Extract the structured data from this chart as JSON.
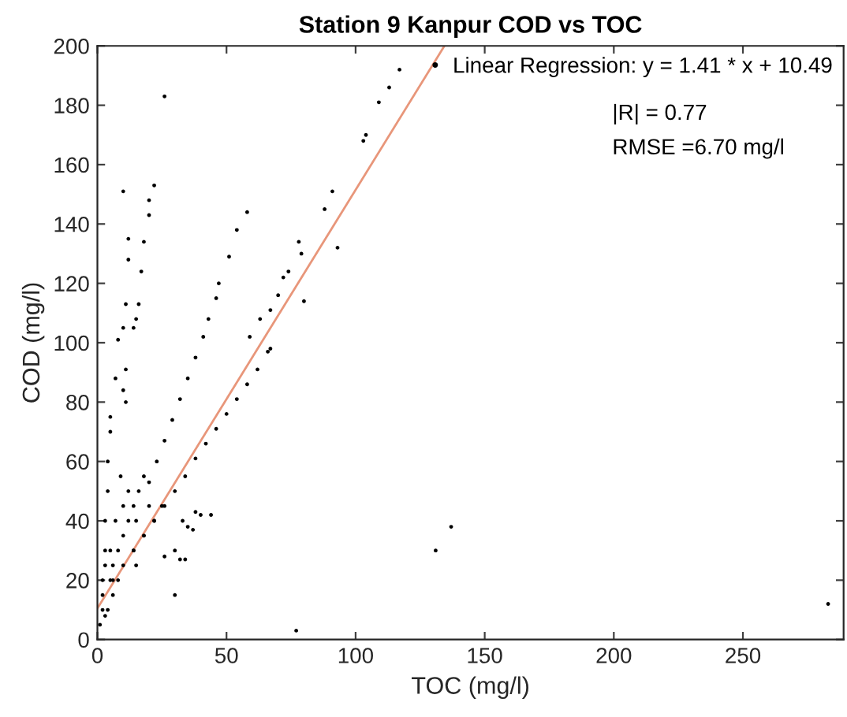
{
  "chart_data": {
    "type": "scatter",
    "title": "Station 9 Kanpur COD vs TOC",
    "xlabel": "TOC (mg/l)",
    "ylabel": "COD (mg/l)",
    "xlim": [
      0,
      289
    ],
    "ylim": [
      0,
      200
    ],
    "xticks": [
      0,
      50,
      100,
      150,
      200,
      250
    ],
    "yticks": [
      0,
      20,
      40,
      60,
      80,
      100,
      120,
      140,
      160,
      180,
      200
    ],
    "grid": false,
    "legend": "top right",
    "series": [
      {
        "name": "Linear Regression: y = 1.41 * x + 10.49",
        "color": "#000000",
        "marker": "circle",
        "x": [
          10,
          12,
          12,
          11,
          10,
          11,
          10,
          11,
          7,
          8,
          5,
          5,
          4,
          4,
          3,
          3,
          2,
          2,
          1,
          22,
          20,
          20,
          18,
          17,
          16,
          15,
          14,
          58,
          54,
          51,
          47,
          46,
          43,
          41,
          38,
          35,
          32,
          29,
          26,
          23,
          20,
          62,
          58,
          54,
          50,
          46,
          42,
          38,
          34,
          30,
          26,
          22,
          18,
          14,
          10,
          6,
          59,
          63,
          67,
          70,
          72,
          74,
          78,
          79,
          80,
          88,
          91,
          93,
          103,
          104,
          109,
          113,
          117,
          26,
          66,
          67,
          77,
          30,
          131,
          137,
          283,
          38,
          40,
          44,
          35,
          37,
          33,
          32,
          34,
          26,
          30,
          5,
          6,
          8,
          10,
          12,
          14,
          16,
          18,
          10,
          12,
          15,
          8,
          6,
          4,
          3,
          15,
          20,
          18,
          22,
          25,
          5,
          7,
          9,
          14,
          3,
          2
        ],
        "values": [
          151,
          135,
          128,
          113,
          105,
          91,
          84,
          80,
          88,
          101,
          75,
          70,
          60,
          50,
          40,
          30,
          20,
          10,
          5,
          153,
          148,
          143,
          134,
          124,
          113,
          108,
          105,
          144,
          138,
          129,
          120,
          115,
          108,
          102,
          95,
          88,
          81,
          74,
          67,
          60,
          53,
          91,
          86,
          81,
          76,
          71,
          66,
          61,
          55,
          50,
          45,
          40,
          35,
          30,
          25,
          20,
          102,
          108,
          111,
          116,
          122,
          124,
          134,
          130,
          114,
          145,
          151,
          132,
          168,
          170,
          181,
          186,
          192,
          183,
          97,
          98,
          3,
          15,
          30,
          38,
          12,
          43,
          42,
          42,
          38,
          37,
          40,
          27,
          27,
          28,
          30,
          20,
          25,
          30,
          35,
          40,
          45,
          50,
          55,
          45,
          50,
          40,
          20,
          15,
          10,
          8,
          25,
          45,
          35,
          40,
          45,
          30,
          40,
          55,
          30,
          25,
          15
        ]
      },
      {
        "type": "line",
        "color": "#e8967a",
        "x": [
          0,
          134.4
        ],
        "values": [
          10.5,
          200
        ]
      }
    ],
    "annotations": [
      "|R| = 0.77",
      "RMSE =6.70 mg/l"
    ]
  }
}
